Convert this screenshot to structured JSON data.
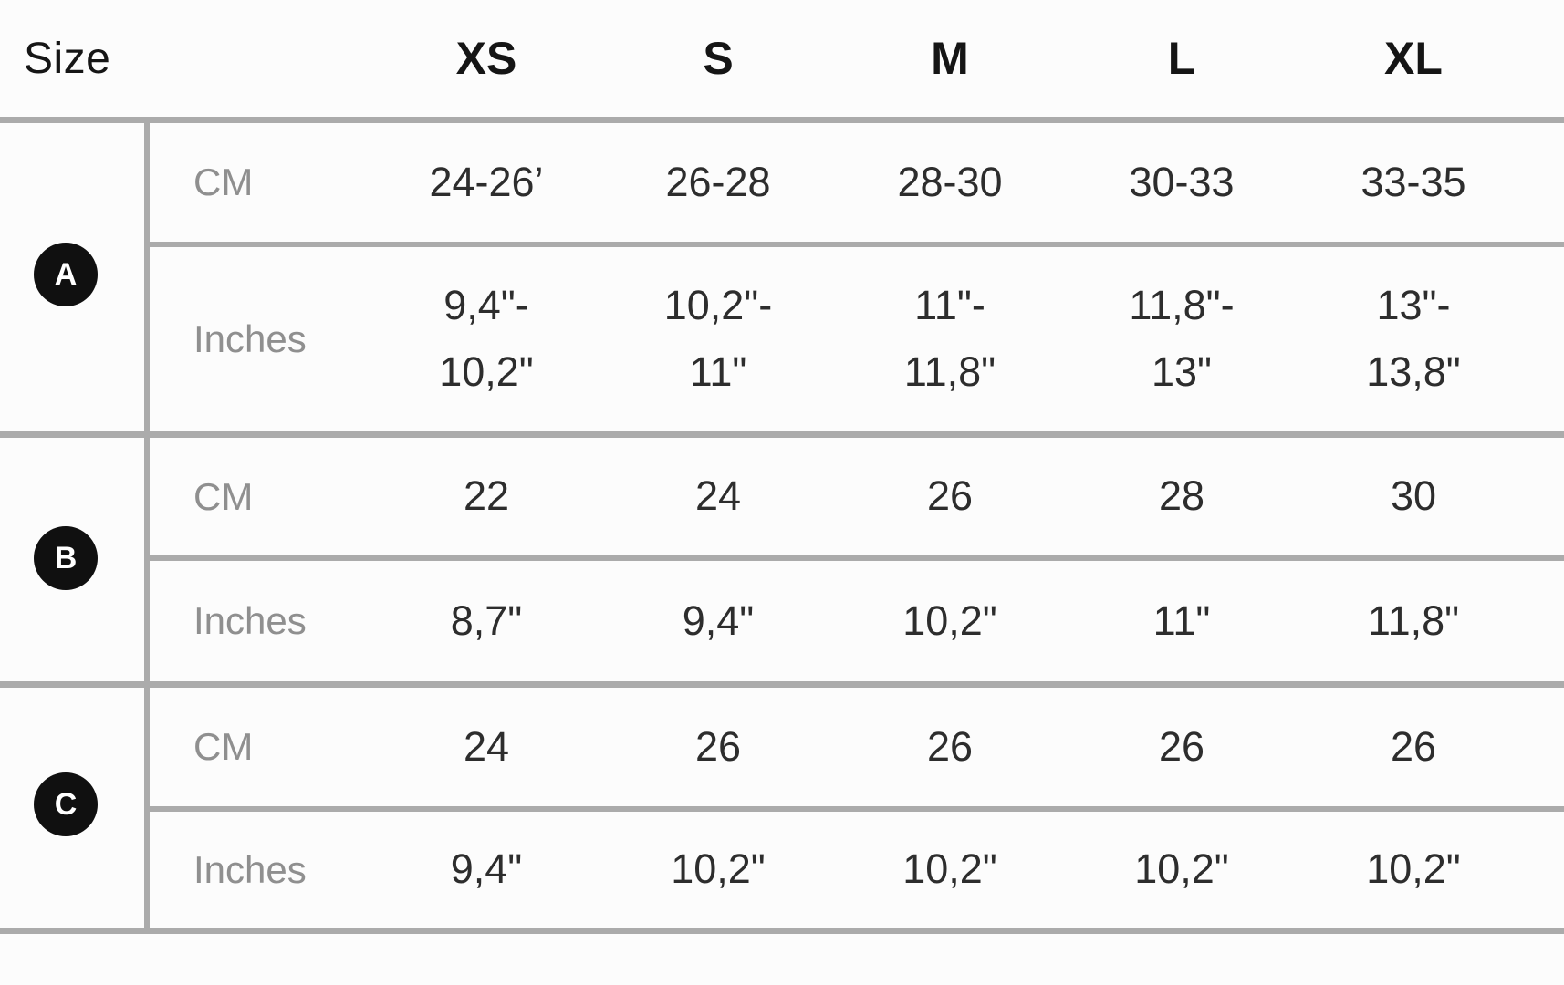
{
  "table": {
    "size_label": "Size",
    "sizes": {
      "xs": "XS",
      "s": "S",
      "m": "M",
      "l": "L",
      "xl": "XL"
    },
    "unit_cm_label": "CM",
    "unit_inches_label": "Inches",
    "groups": [
      {
        "badge": "A",
        "cm": [
          "24-26’",
          "26-28",
          "28-30",
          "30-33",
          "33-35"
        ],
        "inches": [
          "9,4\"-\n10,2\"",
          "10,2\"-\n11\"",
          "11\"-\n11,8\"",
          "11,8\"-\n13\"",
          "13\"-\n13,8\""
        ]
      },
      {
        "badge": "B",
        "cm": [
          "22",
          "24",
          "26",
          "28",
          "30"
        ],
        "inches": [
          "8,7\"",
          "9,4\"",
          "10,2\"",
          "11\"",
          "11,8\""
        ]
      },
      {
        "badge": "C",
        "cm": [
          "24",
          "26",
          "26",
          "26",
          "26"
        ],
        "inches": [
          "9,4\"",
          "10,2\"",
          "10,2\"",
          "10,2\"",
          "10,2\""
        ]
      }
    ]
  },
  "colors": {
    "bg": "#fcfcfc",
    "line": "#ababab",
    "header-text": "#151515",
    "value-text": "#2d2d2d",
    "label-text": "#8f8f8f",
    "badge-bg": "#101010",
    "badge-text": "#ffffff"
  }
}
